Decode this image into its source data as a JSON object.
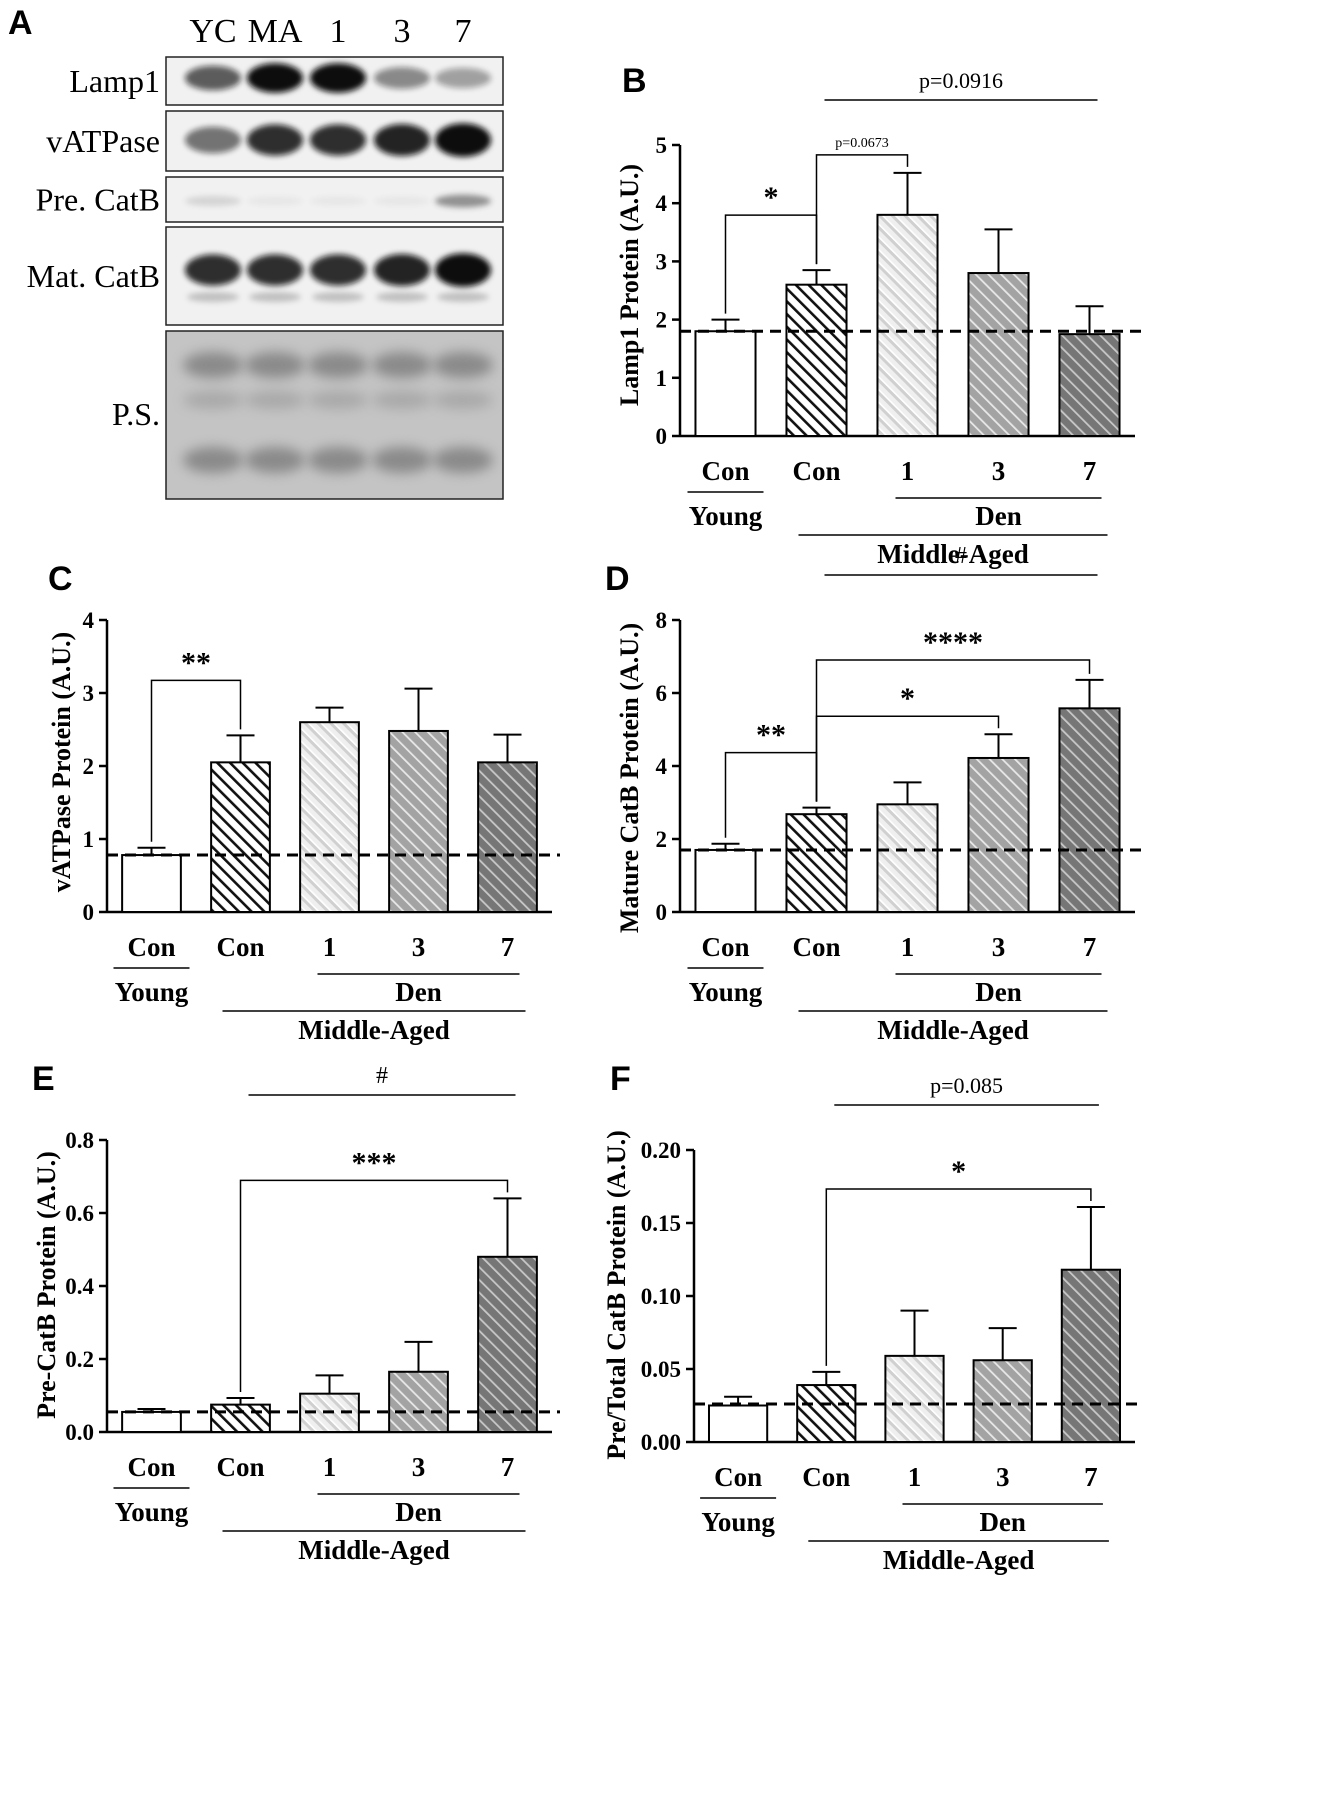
{
  "figure": {
    "panel_labels": [
      "A",
      "B",
      "C",
      "D",
      "E",
      "F"
    ]
  },
  "blot": {
    "lane_labels": [
      "YC",
      "MA",
      "1",
      "3",
      "7"
    ],
    "rows": [
      {
        "label": "Lamp1",
        "intensity": [
          0.65,
          1.0,
          1.0,
          0.45,
          0.35
        ],
        "band_color": "#111111"
      },
      {
        "label": "vATPase",
        "intensity": [
          0.55,
          0.85,
          0.85,
          0.9,
          1.0
        ],
        "band_color": "#111111"
      },
      {
        "label": "Pre. CatB",
        "intensity": [
          0.15,
          0.05,
          0.05,
          0.05,
          0.5
        ],
        "band_color": "#333333"
      },
      {
        "label": "Mat. CatB",
        "intensity": [
          0.85,
          0.85,
          0.85,
          0.9,
          1.0
        ],
        "band_color": "#111111"
      },
      {
        "label": "P.S.",
        "intensity": [
          0.6,
          0.6,
          0.6,
          0.6,
          0.6
        ],
        "band_color": "#777777"
      }
    ]
  },
  "groups": {
    "tick_labels": [
      "Con",
      "Con",
      "1",
      "3",
      "7"
    ],
    "young_label": "Young",
    "den_label": "Den",
    "middle_aged_label": "Middle-Aged"
  },
  "colors": {
    "young_fill": "#ffffff",
    "con_stripe": "#111111",
    "den1_stripe": "#d8d8d8",
    "den3_stripe": "#9a9a9a",
    "den7_stripe": "#6e6e6e"
  },
  "chart_data": [
    {
      "panel": "B",
      "type": "bar",
      "ylabel": "Lamp1 Protein (A.U.)",
      "ylim": [
        0,
        5
      ],
      "yticks": [
        "0",
        "1",
        "2",
        "3",
        "4",
        "5"
      ],
      "categories": [
        "Young Con",
        "Middle-Aged Con",
        "Den 1",
        "Den 3",
        "Den 7"
      ],
      "values": [
        1.8,
        2.6,
        3.8,
        2.8,
        1.75
      ],
      "errors": [
        0.2,
        0.25,
        0.72,
        0.75,
        0.48
      ],
      "reference_line": 1.8,
      "annotations": [
        {
          "from": 0,
          "to": 1,
          "label": "*"
        },
        {
          "from": 1,
          "to": 2,
          "label": "p=0.0673"
        },
        {
          "from": 1,
          "to": 4,
          "label": "p=0.0916",
          "style": "line"
        }
      ]
    },
    {
      "panel": "C",
      "type": "bar",
      "ylabel": "vATPase Protein (A.U.)",
      "ylim": [
        0,
        4
      ],
      "yticks": [
        "0",
        "1",
        "2",
        "3",
        "4"
      ],
      "categories": [
        "Young Con",
        "Middle-Aged Con",
        "Den 1",
        "Den 3",
        "Den 7"
      ],
      "values": [
        0.78,
        2.05,
        2.6,
        2.48,
        2.05
      ],
      "errors": [
        0.1,
        0.37,
        0.2,
        0.58,
        0.38
      ],
      "reference_line": 0.78,
      "annotations": [
        {
          "from": 0,
          "to": 1,
          "label": "**"
        }
      ]
    },
    {
      "panel": "D",
      "type": "bar",
      "ylabel": "Mature  CatB Protein (A.U.)",
      "ylim": [
        0,
        8
      ],
      "yticks": [
        "0",
        "2",
        "4",
        "6",
        "8"
      ],
      "categories": [
        "Young Con",
        "Middle-Aged Con",
        "Den 1",
        "Den 3",
        "Den 7"
      ],
      "values": [
        1.7,
        2.68,
        2.95,
        4.22,
        5.58
      ],
      "errors": [
        0.17,
        0.18,
        0.6,
        0.65,
        0.78
      ],
      "reference_line": 1.7,
      "annotations": [
        {
          "from": 0,
          "to": 1,
          "label": "**"
        },
        {
          "from": 1,
          "to": 3,
          "label": "*"
        },
        {
          "from": 1,
          "to": 4,
          "label": "****"
        },
        {
          "from": 1,
          "to": 4,
          "label": "#",
          "style": "line"
        }
      ]
    },
    {
      "panel": "E",
      "type": "bar",
      "ylabel": "Pre-CatB Protein (A.U.)",
      "ylim": [
        0,
        0.8
      ],
      "yticks": [
        "0.0",
        "0.2",
        "0.4",
        "0.6",
        "0.8"
      ],
      "categories": [
        "Young Con",
        "Middle-Aged Con",
        "Den 1",
        "Den 3",
        "Den 7"
      ],
      "values": [
        0.055,
        0.075,
        0.105,
        0.165,
        0.48
      ],
      "errors": [
        0.008,
        0.018,
        0.05,
        0.082,
        0.16
      ],
      "reference_line": 0.055,
      "annotations": [
        {
          "from": 1,
          "to": 4,
          "label": "***"
        },
        {
          "from": 1,
          "to": 4,
          "label": "#",
          "style": "line"
        }
      ]
    },
    {
      "panel": "F",
      "type": "bar",
      "ylabel": "Pre/Total CatB Protein (A.U.)",
      "ylim": [
        0,
        0.2
      ],
      "yticks": [
        "0.00",
        "0.05",
        "0.10",
        "0.15",
        "0.20"
      ],
      "categories": [
        "Young Con",
        "Middle-Aged Con",
        "Den 1",
        "Den 3",
        "Den 7"
      ],
      "values": [
        0.025,
        0.039,
        0.059,
        0.056,
        0.118
      ],
      "errors": [
        0.006,
        0.009,
        0.031,
        0.022,
        0.043
      ],
      "reference_line": 0.026,
      "annotations": [
        {
          "from": 1,
          "to": 4,
          "label": "*"
        },
        {
          "from": 1,
          "to": 4,
          "label": "p=0.085",
          "style": "line"
        }
      ]
    }
  ]
}
